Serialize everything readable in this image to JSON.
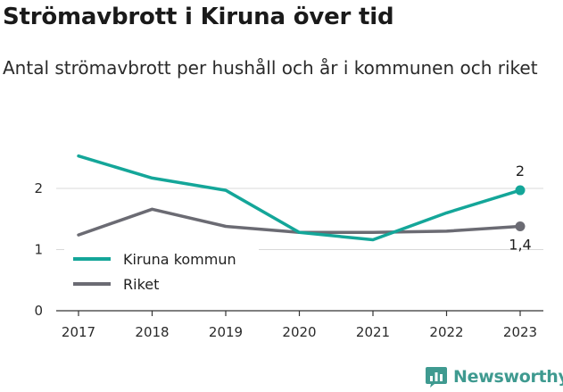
{
  "title": "Strömavbrott i Kiruna över tid",
  "subtitle": "Antal strömavbrott per hushåll och år i kommunen och riket",
  "brand": {
    "name": "Newsworthy",
    "icon": "newsworthy-logo-icon",
    "color": "#3f9a90"
  },
  "chart_data": {
    "type": "line",
    "x": [
      "2017",
      "2018",
      "2019",
      "2020",
      "2021",
      "2022",
      "2023"
    ],
    "series": [
      {
        "name": "Kiruna kommun",
        "color": "#14a699",
        "values": [
          2.53,
          2.17,
          1.97,
          1.28,
          1.16,
          1.6,
          1.97
        ],
        "end_label": "2"
      },
      {
        "name": "Riket",
        "color": "#6b6b73",
        "values": [
          1.24,
          1.66,
          1.38,
          1.28,
          1.28,
          1.3,
          1.38
        ],
        "end_label": "1,4"
      }
    ],
    "y_ticks": [
      "0",
      "1",
      "2"
    ],
    "ylim": [
      0,
      3
    ],
    "grid": true,
    "legend": "bottom-left"
  }
}
